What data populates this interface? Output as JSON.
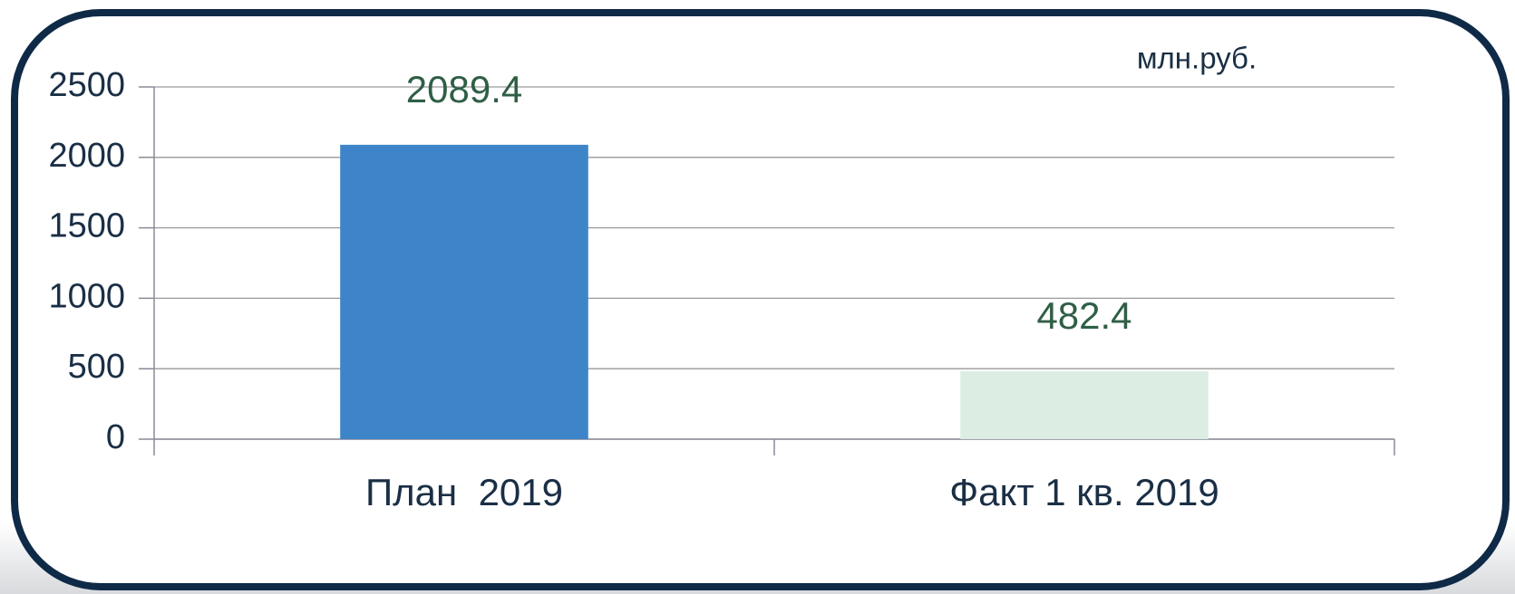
{
  "chart_data": {
    "type": "bar",
    "unit_label": "млн.руб.",
    "categories": [
      "План  2019",
      "Факт 1 кв. 2019"
    ],
    "values": [
      2089.4,
      482.4
    ],
    "colors": [
      "#3d85c8",
      "#dcede4"
    ],
    "value_label_color": "#2f5f46",
    "ylim": [
      0,
      2500
    ],
    "yticks": [
      0,
      500,
      1000,
      1500,
      2000,
      2500
    ],
    "grid": true
  }
}
